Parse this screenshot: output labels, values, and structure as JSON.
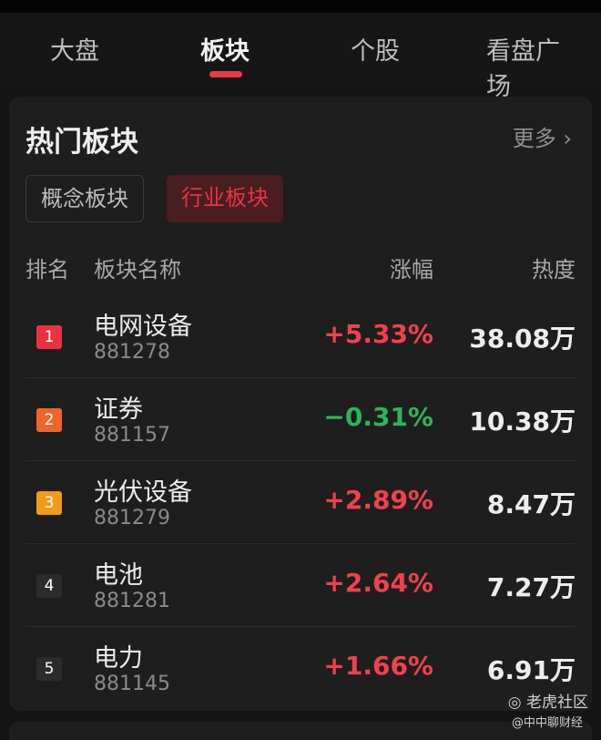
{
  "tabs": [
    {
      "label": "大盘"
    },
    {
      "label": "板块"
    },
    {
      "label": "个股"
    },
    {
      "label": "看盘广场"
    }
  ],
  "card": {
    "title": "热门板块",
    "more": "更多",
    "segments": [
      "概念板块",
      "行业板块"
    ],
    "headers": {
      "rank": "排名",
      "name": "板块名称",
      "change": "涨幅",
      "heat": "热度"
    },
    "rows": [
      {
        "rank": "1",
        "name": "电网设备",
        "code": "881278",
        "change": "+5.33%",
        "heat": "38.08万",
        "rank_color": "#e8333f",
        "dir": "up"
      },
      {
        "rank": "2",
        "name": "证券",
        "code": "881157",
        "change": "−0.31%",
        "heat": "10.38万",
        "rank_color": "#f0652a",
        "dir": "down"
      },
      {
        "rank": "3",
        "name": "光伏设备",
        "code": "881279",
        "change": "+2.89%",
        "heat": "8.47万",
        "rank_color": "#f39a1c",
        "dir": "up"
      },
      {
        "rank": "4",
        "name": "电池",
        "code": "881281",
        "change": "+2.64%",
        "heat": "7.27万",
        "rank_color": "#2c2c2c",
        "dir": "up"
      },
      {
        "rank": "5",
        "name": "电力",
        "code": "881145",
        "change": "+1.66%",
        "heat": "6.91万",
        "rank_color": "#2c2c2c",
        "dir": "up"
      }
    ]
  },
  "colors": {
    "up": "#f0424c",
    "down": "#2fb45a",
    "accent": "#ea3a4a"
  },
  "watermark": {
    "brand": "老虎社区",
    "author": "@中中聊财经"
  }
}
